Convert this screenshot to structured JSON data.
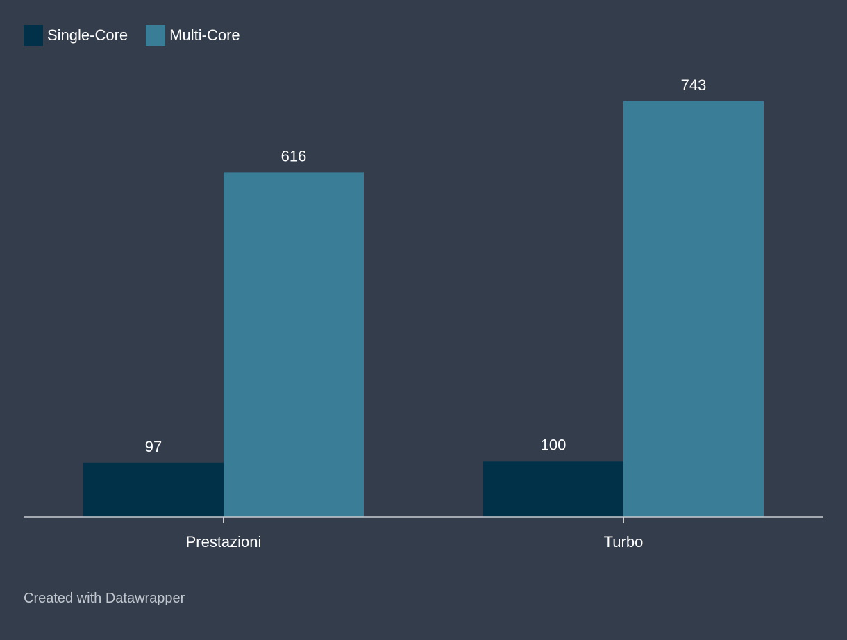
{
  "colors": {
    "background": "#333d4c",
    "single_core": "#003149",
    "multi_core": "#397d97",
    "axis": "#c9ccd1",
    "text": "#ffffff",
    "credit": "#c2c7cf"
  },
  "legend": {
    "single_label": "Single-Core",
    "multi_label": "Multi-Core",
    "placement": "top-left"
  },
  "credit": "Created with Datawrapper",
  "chart_data": {
    "type": "bar",
    "categories": [
      "Prestazioni",
      "Turbo"
    ],
    "series": [
      {
        "name": "Single-Core",
        "values": [
          97,
          100
        ]
      },
      {
        "name": "Multi-Core",
        "values": [
          616,
          743
        ]
      }
    ],
    "ylim": [
      0,
      743
    ],
    "grid": false,
    "legend": "top-left"
  }
}
